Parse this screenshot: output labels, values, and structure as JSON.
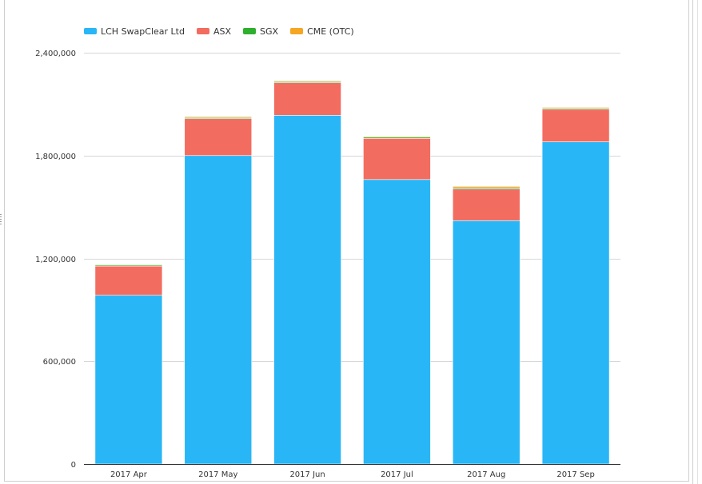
{
  "chart_data": {
    "type": "bar",
    "stacked": true,
    "categories": [
      "2017 Apr",
      "2017 May",
      "2017 Jun",
      "2017 Jul",
      "2017 Aug",
      "2017 Sep"
    ],
    "series": [
      {
        "name": "LCH SwapClear Ltd",
        "color": "#29b6f6",
        "values": [
          985000,
          1800000,
          2035000,
          1660000,
          1420000,
          1880000
        ]
      },
      {
        "name": "ASX",
        "color": "#f36c60",
        "values": [
          170000,
          215000,
          190000,
          240000,
          185000,
          190000
        ]
      },
      {
        "name": "SGX",
        "color": "#2eaf2e",
        "values": [
          6000,
          6000,
          6000,
          7000,
          7000,
          6000
        ]
      },
      {
        "name": "CME (OTC)",
        "color": "#f5a623",
        "values": [
          4000,
          6000,
          5000,
          5000,
          8000,
          5000
        ]
      }
    ],
    "y_ticks": [
      "0",
      "600,000",
      "1,200,000",
      "1,800,000",
      "2,400,000"
    ],
    "ylim": [
      0,
      2400000
    ],
    "grid": true,
    "legend_position": "top-left"
  }
}
